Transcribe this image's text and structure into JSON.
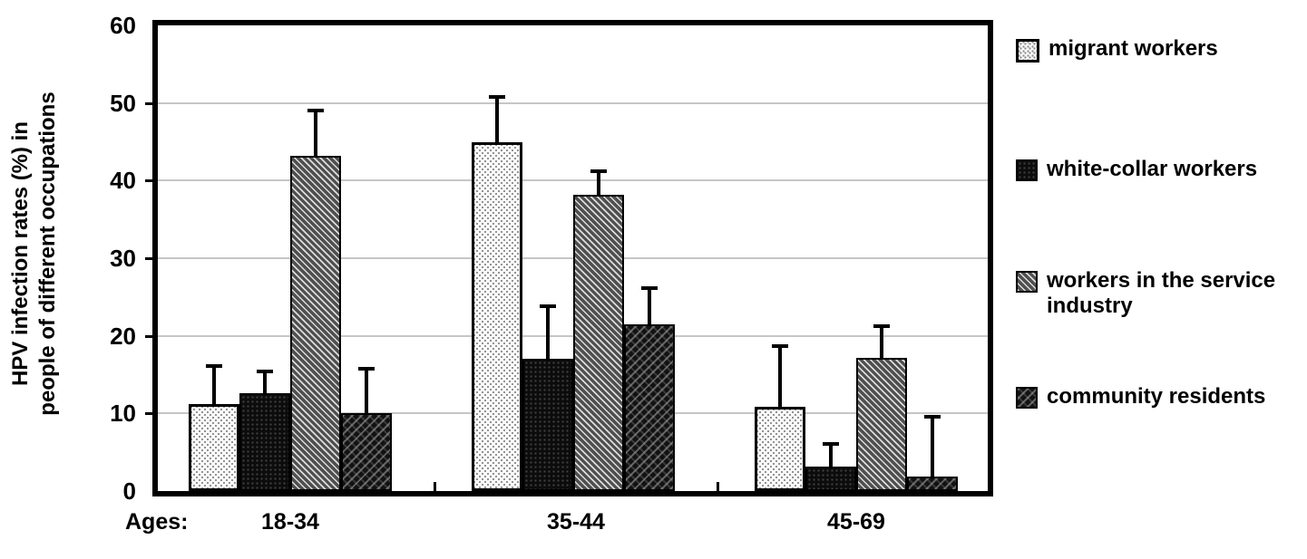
{
  "chart_data": {
    "type": "bar",
    "title": "",
    "ylabel": "HPV infection rates (%) in\npeople of different occupations",
    "xlabel_prefix": "Ages:",
    "categories": [
      "18-34",
      "35-44",
      "45-69"
    ],
    "ylim": [
      0,
      60
    ],
    "yticks": [
      0,
      10,
      20,
      30,
      40,
      50,
      60
    ],
    "grid": "horizontal",
    "legend_position": "right",
    "error_bars": "plus_direction_only",
    "series": [
      {
        "name": "migrant workers",
        "pattern": "light-dots",
        "values": [
          11.2,
          44.9,
          10.8
        ],
        "error_plus": [
          5.1,
          6.1,
          8.1
        ]
      },
      {
        "name": "white-collar workers",
        "pattern": "black-dots",
        "values": [
          12.6,
          17.0,
          3.1
        ],
        "error_plus": [
          3.1,
          7.0,
          3.2
        ]
      },
      {
        "name": "workers in the service industry",
        "pattern": "gray-diagonal",
        "values": [
          43.2,
          38.2,
          17.2
        ],
        "error_plus": [
          6.1,
          3.2,
          4.3
        ]
      },
      {
        "name": "community residents",
        "pattern": "dark-crosshatch",
        "values": [
          10.0,
          21.5,
          1.9
        ],
        "error_plus": [
          6.0,
          4.9,
          7.9
        ]
      }
    ],
    "colors": {
      "axis": "#000000",
      "gridline": "#c6c6c6",
      "background": "#ffffff",
      "bars_and_text": "#000000"
    }
  }
}
